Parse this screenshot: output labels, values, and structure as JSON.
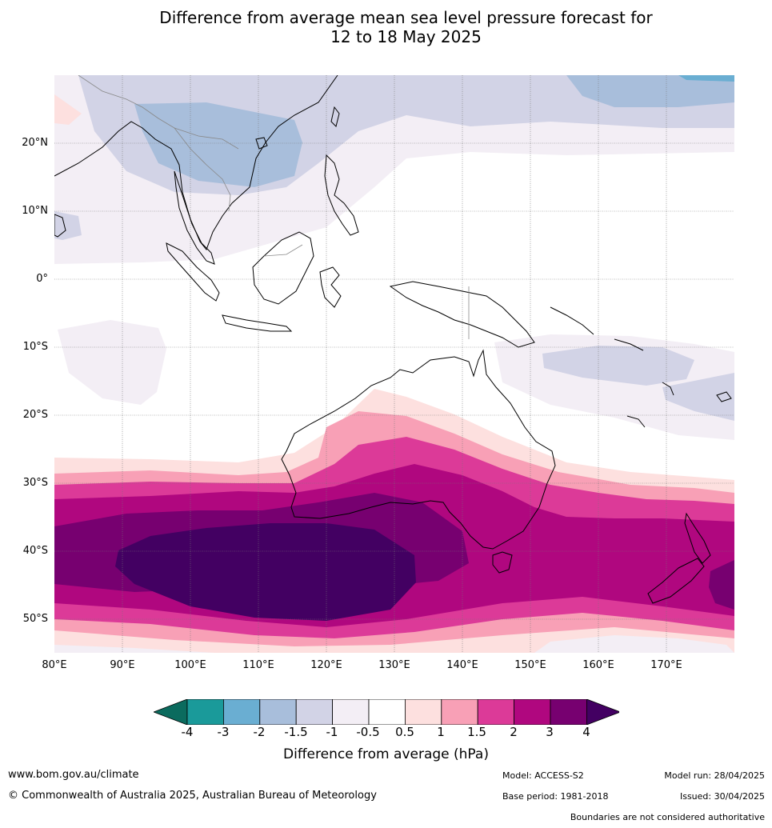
{
  "title_line1": "Difference from average mean sea level pressure forecast for",
  "title_line2": "12 to 18 May 2025",
  "lat_labels": [
    "20°N",
    "10°N",
    "0°",
    "10°S",
    "20°S",
    "30°S",
    "40°S",
    "50°S"
  ],
  "lon_labels": [
    "80°E",
    "90°E",
    "100°E",
    "110°E",
    "120°E",
    "130°E",
    "140°E",
    "150°E",
    "160°E",
    "170°E"
  ],
  "colorbar": {
    "tick_labels": [
      "-4",
      "-3",
      "-2",
      "-1.5",
      "-1",
      "-0.5",
      "0.5",
      "1",
      "1.5",
      "2",
      "3",
      "4"
    ],
    "colors": [
      "#0b6b5e",
      "#1a9a9a",
      "#6aaed2",
      "#a8bedb",
      "#d2d3e6",
      "#f3eef5",
      "#ffffff",
      "#fde0df",
      "#f8a0b6",
      "#dc3a98",
      "#b0077f",
      "#770070",
      "#430062"
    ],
    "label": "Difference from average (hPa)"
  },
  "footer": {
    "website": "www.bom.gov.au/climate",
    "copyright": "© Commonwealth of Australia 2025, Australian Bureau of Meteorology",
    "model": "Model: ACCESS-S2",
    "base_period": "Base period: 1981-2018",
    "model_run": "Model run: 28/04/2025",
    "issued": "Issued: 30/04/2025",
    "disclaimer": "Boundaries are not considered authoritative"
  }
}
